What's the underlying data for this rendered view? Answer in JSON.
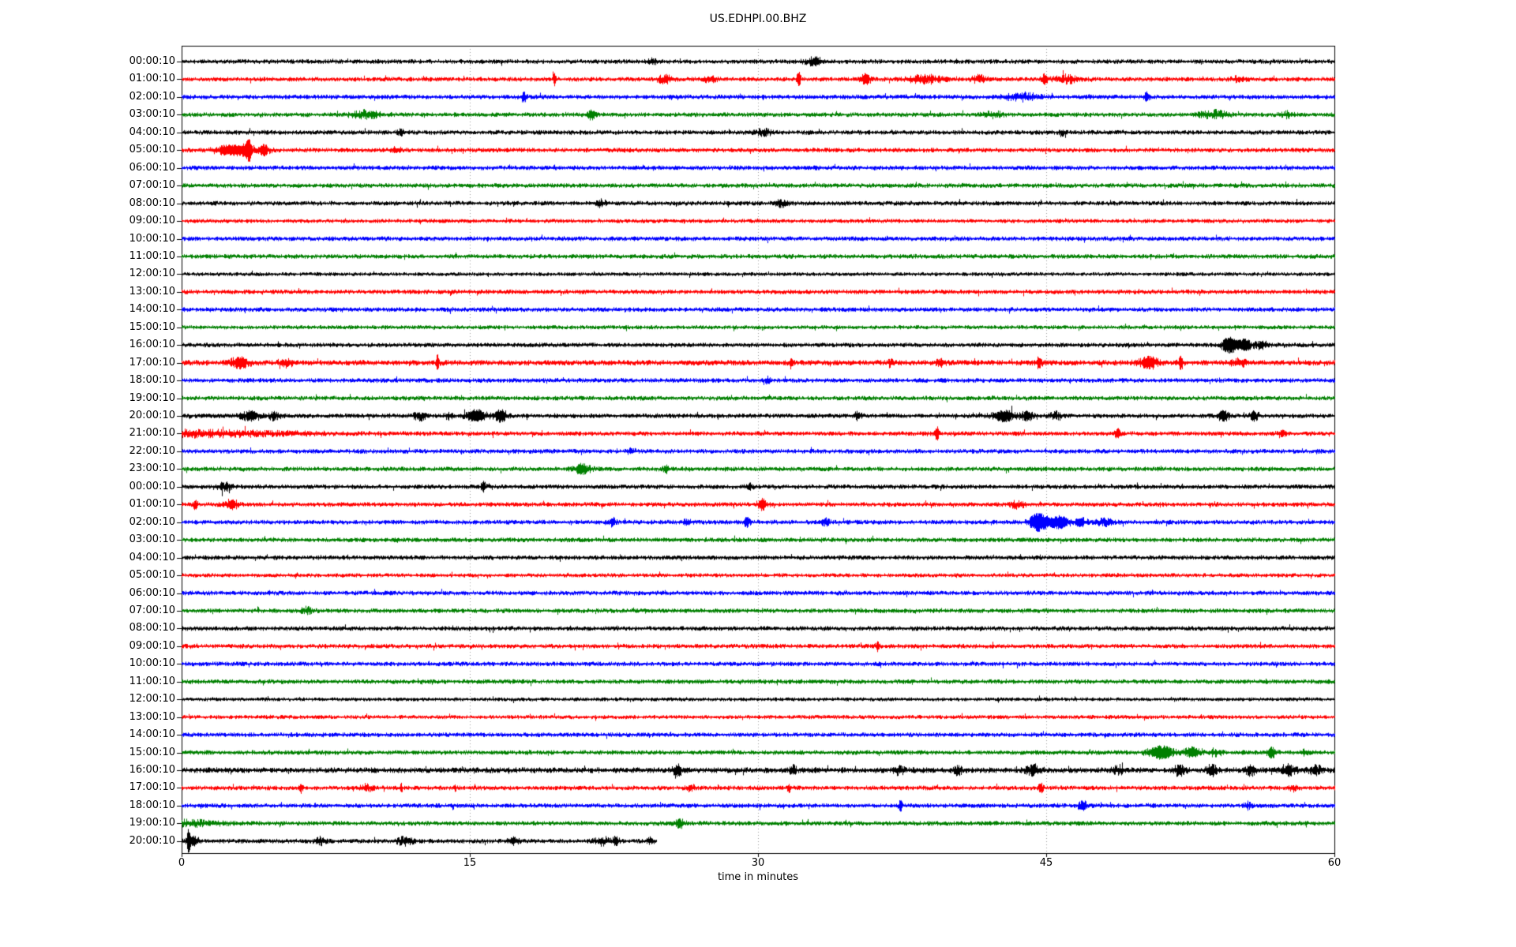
{
  "chart_data": {
    "type": "line",
    "subtype": "helicorder-dayplot",
    "title": "US.EDHPI.00.BHZ",
    "xlabel": "time in minutes",
    "x_range": [
      0,
      60
    ],
    "x_ticks": [
      0,
      15,
      30,
      45,
      60
    ],
    "grid_minutes": [
      15,
      30,
      45
    ],
    "grid_style": "dotted",
    "trace_color_cycle": [
      "#000000",
      "#ff0000",
      "#0000ff",
      "#008000"
    ],
    "events_format": "[minute, amplitude_multiplier, width_minutes]",
    "rows": [
      {
        "label": "00:00:10",
        "color": "#000000",
        "events": [
          [
            33,
            1.6,
            0.5
          ],
          [
            24.5,
            1.2,
            0.3
          ]
        ]
      },
      {
        "label": "01:00:10",
        "color": "#ff0000",
        "events": [
          [
            19.4,
            2.6,
            0.08
          ],
          [
            25.2,
            1.6,
            0.4
          ],
          [
            27.5,
            1.2,
            0.3
          ],
          [
            32.1,
            3.2,
            0.1
          ],
          [
            35.6,
            2.2,
            0.25
          ],
          [
            38.7,
            1.5,
            0.9
          ],
          [
            41.5,
            1.3,
            0.4
          ],
          [
            44.9,
            2.2,
            0.15
          ],
          [
            46,
            1.5,
            0.6
          ],
          [
            55,
            1.2,
            0.3
          ]
        ]
      },
      {
        "label": "02:00:10",
        "color": "#0000ff",
        "events": [
          [
            17.8,
            2.2,
            0.12
          ],
          [
            43.7,
            1.5,
            0.9
          ],
          [
            50.2,
            1.8,
            0.15
          ]
        ]
      },
      {
        "label": "03:00:10",
        "color": "#008000",
        "events": [
          [
            9.6,
            1.5,
            0.7
          ],
          [
            21.3,
            1.9,
            0.25
          ],
          [
            42.2,
            1.2,
            0.5
          ],
          [
            53.7,
            1.5,
            0.7
          ],
          [
            57.5,
            1.1,
            0.3
          ]
        ]
      },
      {
        "label": "04:00:10",
        "color": "#000000",
        "events": [
          [
            11.4,
            1.8,
            0.15
          ],
          [
            30.3,
            1.2,
            0.4
          ],
          [
            45.8,
            1.4,
            0.15
          ]
        ]
      },
      {
        "label": "05:00:10",
        "color": "#ff0000",
        "events": [
          [
            2.2,
            1.6,
            0.6
          ],
          [
            3.2,
            2.2,
            0.6
          ],
          [
            3.5,
            4.2,
            0.12
          ],
          [
            4.3,
            2.0,
            0.3
          ],
          [
            11.2,
            1.3,
            0.2
          ]
        ]
      },
      {
        "label": "06:00:10",
        "color": "#0000ff",
        "events": []
      },
      {
        "label": "07:00:10",
        "color": "#008000",
        "events": []
      },
      {
        "label": "08:00:10",
        "color": "#000000",
        "events": [
          [
            21.8,
            1.3,
            0.3
          ],
          [
            31.2,
            1.2,
            0.3
          ]
        ]
      },
      {
        "label": "09:00:10",
        "color": "#ff0000",
        "noise": 0.9,
        "events": []
      },
      {
        "label": "10:00:10",
        "color": "#0000ff",
        "events": []
      },
      {
        "label": "11:00:10",
        "color": "#008000",
        "events": []
      },
      {
        "label": "12:00:10",
        "color": "#000000",
        "noise": 0.85,
        "events": []
      },
      {
        "label": "13:00:10",
        "color": "#ff0000",
        "events": []
      },
      {
        "label": "14:00:10",
        "color": "#0000ff",
        "events": []
      },
      {
        "label": "15:00:10",
        "color": "#008000",
        "noise": 0.9,
        "events": []
      },
      {
        "label": "16:00:10",
        "color": "#000000",
        "events": [
          [
            54.5,
            3.6,
            0.35
          ],
          [
            55.3,
            2.2,
            0.45
          ],
          [
            56.2,
            1.6,
            0.3
          ]
        ]
      },
      {
        "label": "17:00:10",
        "color": "#ff0000",
        "noise": 1.2,
        "events": [
          [
            3,
            1.8,
            0.5
          ],
          [
            5.5,
            1.3,
            0.3
          ],
          [
            13.3,
            2.6,
            0.08
          ],
          [
            31.7,
            1.8,
            0.1
          ],
          [
            36.9,
            1.5,
            0.12
          ],
          [
            39.5,
            1.4,
            0.2
          ],
          [
            44.6,
            1.9,
            0.15
          ],
          [
            50.3,
            1.9,
            0.5
          ],
          [
            52,
            2.4,
            0.12
          ],
          [
            55,
            1.3,
            0.4
          ]
        ]
      },
      {
        "label": "18:00:10",
        "color": "#0000ff",
        "events": [
          [
            30.5,
            1.3,
            0.15
          ]
        ]
      },
      {
        "label": "19:00:10",
        "color": "#008000",
        "events": []
      },
      {
        "label": "20:00:10",
        "color": "#000000",
        "events": [
          [
            3.6,
            1.9,
            0.5
          ],
          [
            4.8,
            1.5,
            0.3
          ],
          [
            12.4,
            1.5,
            0.35
          ],
          [
            13.9,
            1.4,
            0.2
          ],
          [
            15.3,
            2.8,
            0.5
          ],
          [
            16.6,
            2.4,
            0.35
          ],
          [
            35.2,
            1.5,
            0.2
          ],
          [
            42.8,
            2.2,
            0.6
          ],
          [
            44.0,
            1.8,
            0.3
          ],
          [
            45.5,
            1.3,
            0.3
          ],
          [
            54.2,
            2.0,
            0.3
          ],
          [
            55.8,
            2.0,
            0.2
          ]
        ]
      },
      {
        "label": "21:00:10",
        "color": "#ff0000",
        "events": [
          [
            0,
            1.2,
            6
          ],
          [
            39.3,
            2.8,
            0.1
          ],
          [
            48.7,
            2.2,
            0.12
          ],
          [
            57.2,
            1.3,
            0.2
          ]
        ]
      },
      {
        "label": "22:00:10",
        "color": "#0000ff",
        "events": [
          [
            23.4,
            1.2,
            0.2
          ]
        ]
      },
      {
        "label": "23:00:10",
        "color": "#008000",
        "events": [
          [
            20.8,
            2.0,
            0.45
          ],
          [
            25.2,
            1.3,
            0.2
          ]
        ]
      },
      {
        "label": "00:00:10",
        "color": "#000000",
        "events": [
          [
            2.2,
            1.5,
            0.4
          ],
          [
            15.7,
            2.0,
            0.12
          ],
          [
            29.5,
            1.2,
            0.2
          ]
        ]
      },
      {
        "label": "01:00:10",
        "color": "#ff0000",
        "events": [
          [
            0.7,
            2.2,
            0.1
          ],
          [
            2.6,
            1.9,
            0.35
          ],
          [
            30.2,
            2.3,
            0.25
          ],
          [
            43.5,
            1.3,
            0.4
          ]
        ]
      },
      {
        "label": "02:00:10",
        "color": "#0000ff",
        "events": [
          [
            22.4,
            1.8,
            0.15
          ],
          [
            26.3,
            1.3,
            0.2
          ],
          [
            29.4,
            1.9,
            0.15
          ],
          [
            33.5,
            1.3,
            0.2
          ],
          [
            44.6,
            4.0,
            0.5
          ],
          [
            45.7,
            2.6,
            0.5
          ],
          [
            46.8,
            1.9,
            0.3
          ],
          [
            48,
            1.3,
            0.4
          ]
        ]
      },
      {
        "label": "03:00:10",
        "color": "#008000",
        "events": []
      },
      {
        "label": "04:00:10",
        "color": "#000000",
        "events": []
      },
      {
        "label": "05:00:10",
        "color": "#ff0000",
        "noise": 0.9,
        "events": []
      },
      {
        "label": "06:00:10",
        "color": "#0000ff",
        "events": []
      },
      {
        "label": "07:00:10",
        "color": "#008000",
        "events": [
          [
            6.5,
            1.2,
            0.3
          ]
        ]
      },
      {
        "label": "08:00:10",
        "color": "#000000",
        "events": []
      },
      {
        "label": "09:00:10",
        "color": "#ff0000",
        "events": [
          [
            36.2,
            1.9,
            0.1
          ]
        ]
      },
      {
        "label": "10:00:10",
        "color": "#0000ff",
        "events": []
      },
      {
        "label": "11:00:10",
        "color": "#008000",
        "events": []
      },
      {
        "label": "12:00:10",
        "color": "#000000",
        "noise": 0.85,
        "events": []
      },
      {
        "label": "13:00:10",
        "color": "#ff0000",
        "noise": 0.9,
        "events": []
      },
      {
        "label": "14:00:10",
        "color": "#0000ff",
        "events": []
      },
      {
        "label": "15:00:10",
        "color": "#008000",
        "events": [
          [
            51,
            2.6,
            0.7
          ],
          [
            52.6,
            2.0,
            0.4
          ],
          [
            53.8,
            1.5,
            0.3
          ],
          [
            56.7,
            2.0,
            0.25
          ],
          [
            58.5,
            1.2,
            0.3
          ]
        ]
      },
      {
        "label": "16:00:10",
        "color": "#000000",
        "noise": 1.25,
        "events": [
          [
            25.8,
            1.7,
            0.25
          ],
          [
            31.8,
            1.3,
            0.2
          ],
          [
            37.3,
            1.5,
            0.25
          ],
          [
            40.4,
            1.3,
            0.2
          ],
          [
            44.3,
            1.6,
            0.4
          ],
          [
            48.8,
            1.3,
            0.3
          ],
          [
            51.9,
            1.8,
            0.25
          ],
          [
            53.6,
            1.6,
            0.25
          ],
          [
            55.6,
            1.6,
            0.25
          ],
          [
            57.6,
            1.8,
            0.4
          ],
          [
            59,
            1.6,
            0.3
          ]
        ]
      },
      {
        "label": "17:00:10",
        "color": "#ff0000",
        "events": [
          [
            6.2,
            2.0,
            0.08
          ],
          [
            9.6,
            1.3,
            0.3
          ],
          [
            11.4,
            1.8,
            0.08
          ],
          [
            14.2,
            1.6,
            0.08
          ],
          [
            26.5,
            1.2,
            0.2
          ],
          [
            31.6,
            1.8,
            0.08
          ],
          [
            44.7,
            2.2,
            0.12
          ],
          [
            57.8,
            1.2,
            0.2
          ]
        ]
      },
      {
        "label": "18:00:10",
        "color": "#0000ff",
        "events": [
          [
            37.4,
            2.2,
            0.1
          ],
          [
            46.9,
            1.8,
            0.25
          ],
          [
            55.5,
            1.2,
            0.2
          ]
        ]
      },
      {
        "label": "19:00:10",
        "color": "#008000",
        "events": [
          [
            0,
            1.1,
            2
          ],
          [
            25.9,
            1.8,
            0.25
          ]
        ]
      },
      {
        "label": "20:00:10",
        "color": "#000000",
        "end": 24.7,
        "events": [
          [
            0.35,
            4.5,
            0.08
          ],
          [
            0.6,
            1.8,
            0.3
          ],
          [
            7.2,
            1.3,
            0.3
          ],
          [
            11.6,
            1.5,
            0.4
          ],
          [
            17.3,
            1.4,
            0.3
          ],
          [
            21.9,
            1.5,
            0.4
          ],
          [
            22.6,
            1.8,
            0.15
          ],
          [
            24.4,
            1.5,
            0.15
          ]
        ]
      }
    ]
  }
}
